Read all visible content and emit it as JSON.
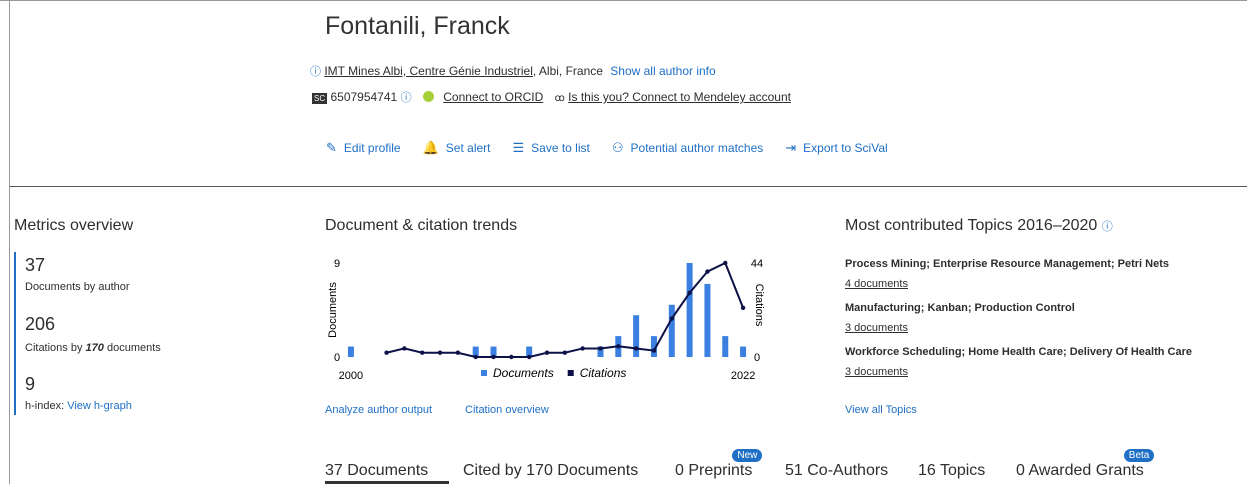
{
  "header": {
    "name": "Fontanili, Franck",
    "affiliation": "IMT Mines Albi, Centre Génie Industriel",
    "affiliation_place": ", Albi, France",
    "show_info": "Show all author info",
    "scopus_badge": "SC",
    "author_id": "6507954741",
    "orcid": "Connect to ORCID",
    "mendeley": "Is this you? Connect to Mendeley account"
  },
  "actions": [
    "Edit profile",
    "Set alert",
    "Save to list",
    "Potential author matches",
    "Export to SciVal"
  ],
  "metrics": {
    "title": "Metrics overview",
    "documents": {
      "value": "37",
      "label": "Documents by author"
    },
    "citations": {
      "value": "206",
      "label_start": "Citations by",
      "label_count": "170",
      "label_end": "documents"
    },
    "hindex": {
      "value": "9",
      "label": "h-index:",
      "link": "View h-graph"
    }
  },
  "chart_data": {
    "type": "combo",
    "title": "Document & citation trends",
    "ylabel": "Documents",
    "y2label": "Citations",
    "x": [
      2000,
      2001,
      2002,
      2003,
      2004,
      2005,
      2006,
      2007,
      2008,
      2009,
      2010,
      2011,
      2012,
      2013,
      2014,
      2015,
      2016,
      2017,
      2018,
      2019,
      2020,
      2021,
      2022
    ],
    "xlim": [
      1999.5,
      2022.5
    ],
    "xticks": [
      2000,
      2022
    ],
    "ylim": [
      0,
      9
    ],
    "yticks": [
      0,
      9
    ],
    "y2lim": [
      0,
      44
    ],
    "y2ticks": [
      0,
      44
    ],
    "series": [
      {
        "name": "Documents",
        "type": "bar",
        "color": "#3b7fe0",
        "values": [
          1,
          0,
          0,
          0,
          0,
          0,
          0,
          1,
          1,
          0,
          1,
          0,
          0,
          0,
          1,
          2,
          4,
          2,
          5,
          9,
          7,
          2,
          1
        ]
      },
      {
        "name": "Citations",
        "type": "line",
        "axis": "y2",
        "color": "#0c1148",
        "values": [
          null,
          null,
          2,
          4,
          2,
          2,
          2,
          0,
          0,
          0,
          0,
          2,
          2,
          4,
          4,
          5,
          4,
          3,
          18,
          30,
          40,
          44,
          23
        ]
      }
    ]
  },
  "chart_links": [
    "Analyze author output",
    "Citation overview"
  ],
  "topics": {
    "title": "Most contributed Topics 2016–2020",
    "items": [
      {
        "name": "Process Mining; Enterprise Resource Management; Petri Nets",
        "docs": "4 documents"
      },
      {
        "name": "Manufacturing; Kanban; Production Control",
        "docs": "3 documents"
      },
      {
        "name": "Workforce Scheduling; Home Health Care; Delivery Of Health Care",
        "docs": "3 documents"
      }
    ],
    "view_all": "View all Topics"
  },
  "tabs": [
    {
      "label": "37 Documents"
    },
    {
      "label": "Cited by 170 Documents"
    },
    {
      "label": "0 Preprints",
      "badge": "New"
    },
    {
      "label": "51 Co-Authors"
    },
    {
      "label": "16 Topics"
    },
    {
      "label": "0 Awarded Grants",
      "badge": "Beta"
    }
  ]
}
